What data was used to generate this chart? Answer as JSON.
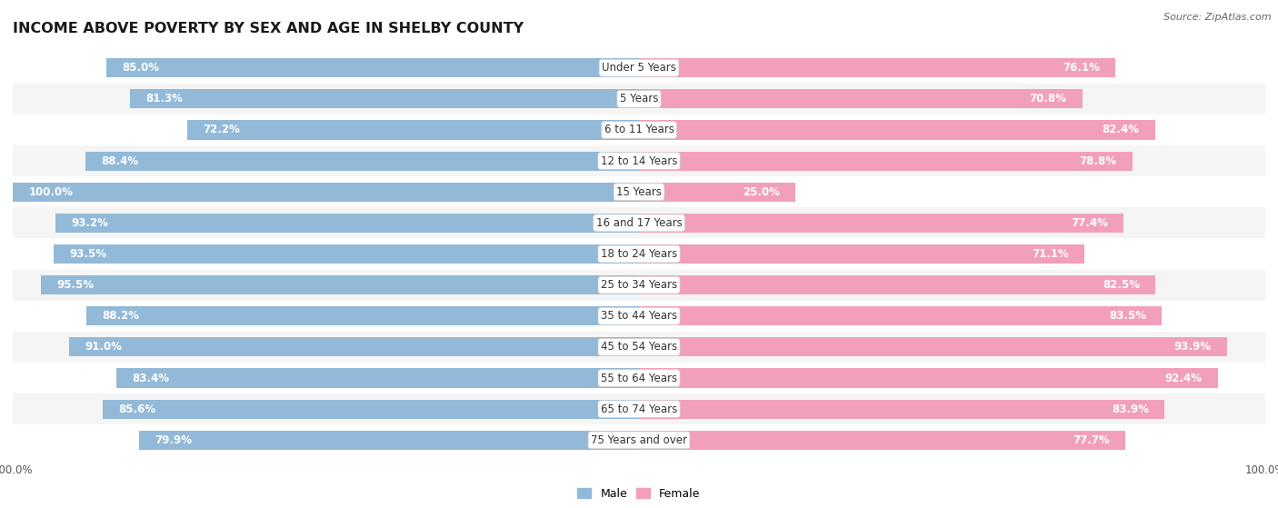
{
  "title": "INCOME ABOVE POVERTY BY SEX AND AGE IN SHELBY COUNTY",
  "source": "Source: ZipAtlas.com",
  "categories": [
    "Under 5 Years",
    "5 Years",
    "6 to 11 Years",
    "12 to 14 Years",
    "15 Years",
    "16 and 17 Years",
    "18 to 24 Years",
    "25 to 34 Years",
    "35 to 44 Years",
    "45 to 54 Years",
    "55 to 64 Years",
    "65 to 74 Years",
    "75 Years and over"
  ],
  "male_values": [
    85.0,
    81.3,
    72.2,
    88.4,
    100.0,
    93.2,
    93.5,
    95.5,
    88.2,
    91.0,
    83.4,
    85.6,
    79.9
  ],
  "female_values": [
    76.1,
    70.8,
    82.4,
    78.8,
    25.0,
    77.4,
    71.1,
    82.5,
    83.5,
    93.9,
    92.4,
    83.9,
    77.7
  ],
  "male_color": "#92b9d8",
  "female_color": "#f2a0ba",
  "male_label": "Male",
  "female_label": "Female",
  "bg_light": "#f5f5f5",
  "bg_white": "#ffffff",
  "max_val": 100.0,
  "title_fontsize": 11.5,
  "label_fontsize": 8.5,
  "tick_fontsize": 8.5,
  "source_fontsize": 8
}
